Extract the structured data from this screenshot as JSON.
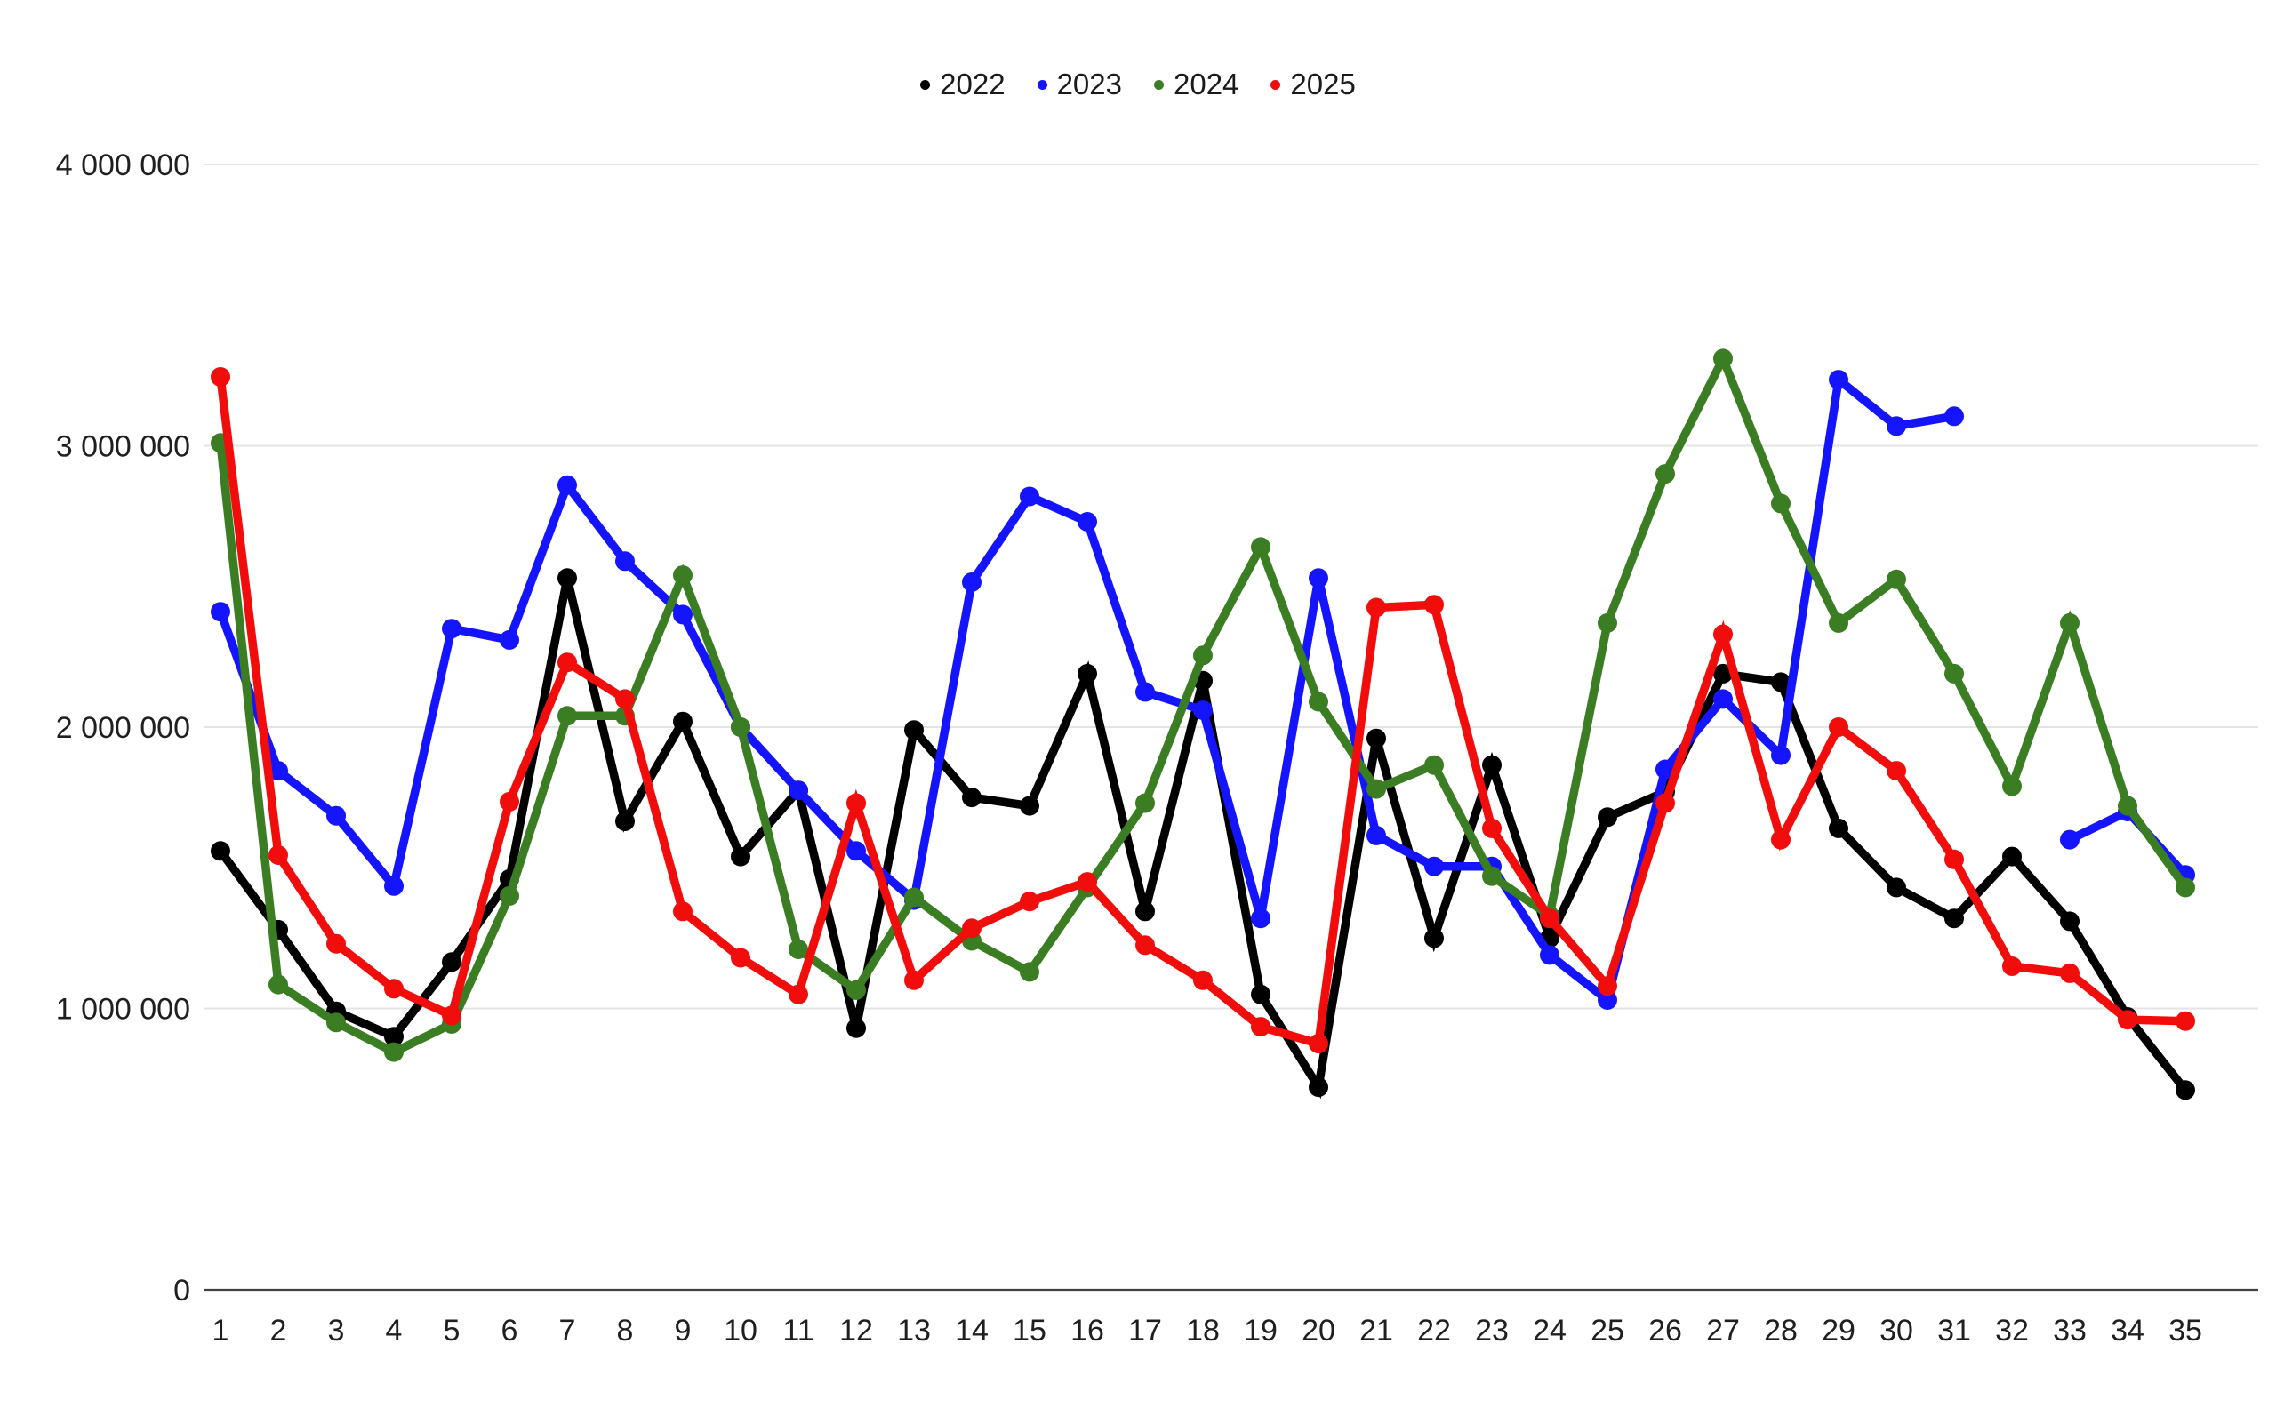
{
  "chart_data": {
    "type": "line",
    "title": "",
    "xlabel": "",
    "ylabel": "",
    "legend_position": "top-center",
    "grid": "horizontal-gridlines-on",
    "background_color": "#ffffff",
    "axis_line_color": "#424242",
    "gridline_color": "#e4e4e4",
    "tick_label_color": "#1f1f1f",
    "ylim": [
      0,
      4000000
    ],
    "yticks": [
      {
        "value": 0,
        "label": "0"
      },
      {
        "value": 1000000,
        "label": "1 000 000"
      },
      {
        "value": 2000000,
        "label": "2 000 000"
      },
      {
        "value": 3000000,
        "label": "3 000 000"
      },
      {
        "value": 4000000,
        "label": "4 000 000"
      }
    ],
    "x": [
      1,
      2,
      3,
      4,
      5,
      6,
      7,
      8,
      9,
      10,
      11,
      12,
      13,
      14,
      15,
      16,
      17,
      18,
      19,
      20,
      21,
      22,
      23,
      24,
      25,
      26,
      27,
      28,
      29,
      30,
      31,
      32,
      33,
      34,
      35
    ],
    "series": [
      {
        "name": "2022",
        "color": "#000000",
        "values": [
          1560000,
          1280000,
          990000,
          900000,
          1165000,
          1460000,
          2530000,
          1665000,
          2020000,
          1540000,
          1775000,
          930000,
          1990000,
          1750000,
          1720000,
          2190000,
          1345000,
          2165000,
          1050000,
          720000,
          1960000,
          1250000,
          1865000,
          1250000,
          1680000,
          1770000,
          2190000,
          2160000,
          1640000,
          1430000,
          1320000,
          1540000,
          1310000,
          970000,
          710000
        ]
      },
      {
        "name": "2023",
        "color": "#1414ff",
        "values": [
          2410000,
          1845000,
          1685000,
          1435000,
          2350000,
          2310000,
          2860000,
          2590000,
          2400000,
          2000000,
          1775000,
          1560000,
          1385000,
          2515000,
          2820000,
          2730000,
          2125000,
          2060000,
          1320000,
          2530000,
          1615000,
          1505000,
          1505000,
          1190000,
          1030000,
          1850000,
          2100000,
          1900000,
          3235000,
          3070000,
          3105000,
          null,
          1600000,
          1700000,
          1475000
        ]
      },
      {
        "name": "2024",
        "color": "#3a7d22",
        "values": [
          3010000,
          1085000,
          950000,
          845000,
          945000,
          1400000,
          2040000,
          2040000,
          2540000,
          2000000,
          1210000,
          1065000,
          1395000,
          1240000,
          1130000,
          1430000,
          1730000,
          2255000,
          2640000,
          2090000,
          1780000,
          1865000,
          1470000,
          1330000,
          2370000,
          2900000,
          3310000,
          2795000,
          2370000,
          2525000,
          2190000,
          1790000,
          2370000,
          1720000,
          1430000
        ]
      },
      {
        "name": "2025",
        "color": "#f20d0d",
        "values": [
          3245000,
          1545000,
          1230000,
          1070000,
          975000,
          1735000,
          2230000,
          2100000,
          1345000,
          1180000,
          1050000,
          1730000,
          1100000,
          1285000,
          1380000,
          1450000,
          1225000,
          1100000,
          935000,
          875000,
          2425000,
          2435000,
          1640000,
          1320000,
          1080000,
          1730000,
          2330000,
          1600000,
          2000000,
          1845000,
          1530000,
          1150000,
          1125000,
          960000,
          955000
        ]
      }
    ]
  }
}
